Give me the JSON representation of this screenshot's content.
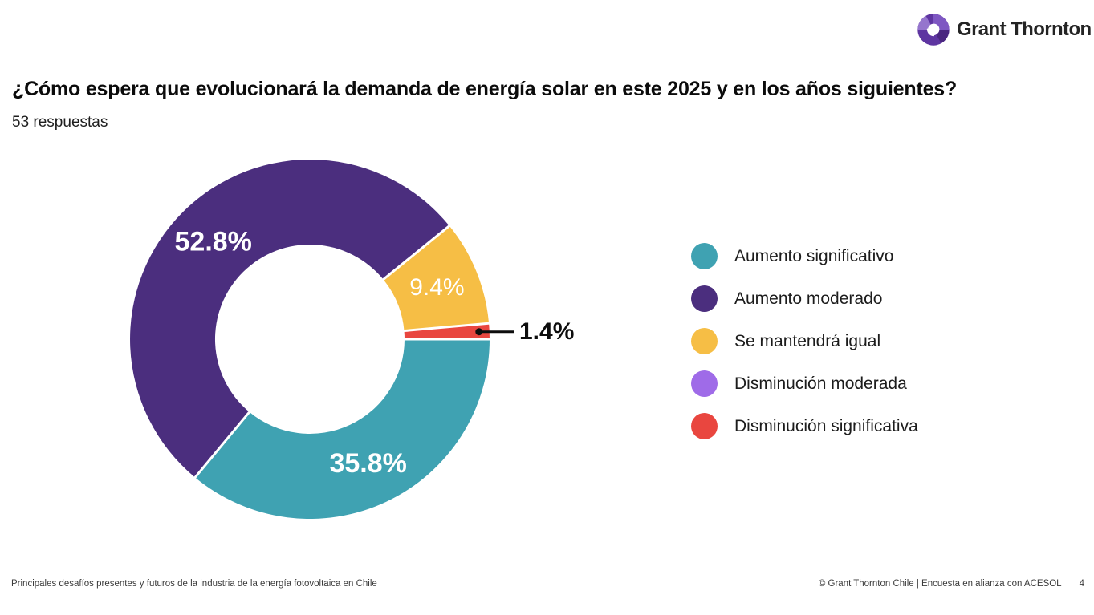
{
  "logo": {
    "brand": "Grant Thornton",
    "icon": "grant-thornton-mobius-icon",
    "brand_purple": "#5E35A1"
  },
  "title": "¿Cómo espera que evolucionará la demanda de energía solar en este 2025 y en los años siguientes?",
  "subtitle": "53 respuestas",
  "chart_data": {
    "type": "pie",
    "donut": true,
    "hole_ratio": 0.53,
    "start_position": "3-oclock",
    "direction": "clockwise",
    "title": "¿Cómo espera que evolucionará la demanda de energía solar en este 2025 y en los años siguientes?",
    "responses_label": "53 respuestas",
    "legend_position": "right",
    "categories": [
      "Aumento significativo",
      "Aumento moderado",
      "Se mantendrá igual",
      "Disminución moderada",
      "Disminución significativa"
    ],
    "values": [
      35.8,
      52.8,
      9.4,
      0,
      1.4
    ],
    "slice_labels": [
      "35.8%",
      "52.8%",
      "9.4%",
      "",
      "1.4%"
    ],
    "colors": [
      "#3FA2B2",
      "#4B2E7E",
      "#F6BE45",
      "#9F6BE8",
      "#E9463F"
    ]
  },
  "legend": {
    "items": [
      {
        "label": "Aumento significativo",
        "color": "#3FA2B2"
      },
      {
        "label": "Aumento moderado",
        "color": "#4B2E7E"
      },
      {
        "label": "Se mantendrá igual",
        "color": "#F6BE45"
      },
      {
        "label": "Disminución moderada",
        "color": "#9F6BE8"
      },
      {
        "label": "Disminución significativa",
        "color": "#E9463F"
      }
    ]
  },
  "footer": {
    "left": "Principales desafíos presentes y futuros de la industria de la energía fotovoltaica en Chile",
    "right": "© Grant Thornton Chile | Encuesta en alianza con ACESOL",
    "page": "4"
  }
}
